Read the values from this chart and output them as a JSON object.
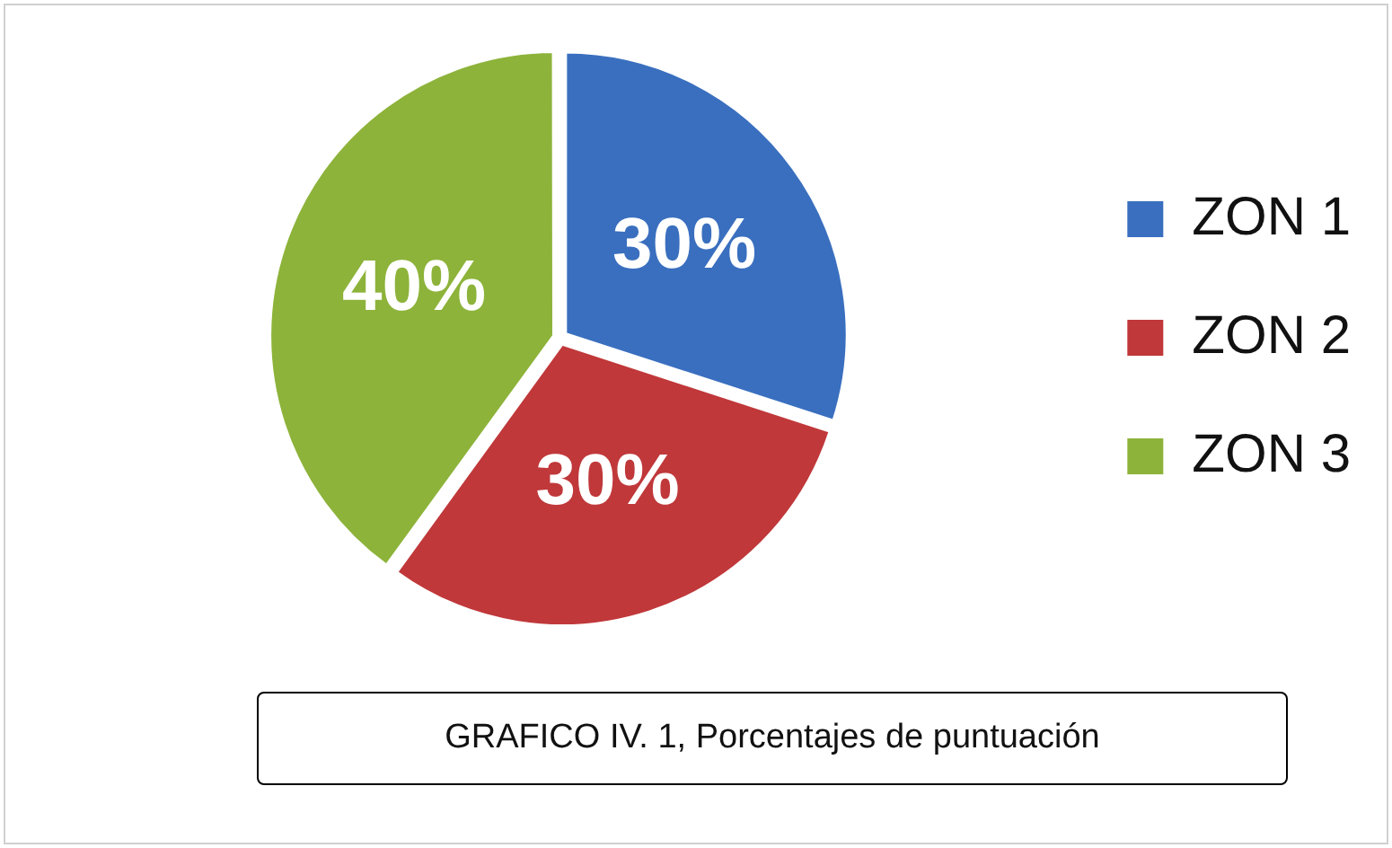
{
  "chart_data": {
    "type": "pie",
    "categories": [
      "ZON 1",
      "ZON 2",
      "ZON 3"
    ],
    "values": [
      30,
      30,
      40
    ],
    "colors": [
      "#3a6fbf",
      "#c0383a",
      "#8db33a"
    ],
    "value_labels": [
      "30%",
      "30%",
      "40%"
    ],
    "legend": "right",
    "annotations": [
      "GRAFICO IV. 1, Porcentajes de puntuación"
    ]
  }
}
